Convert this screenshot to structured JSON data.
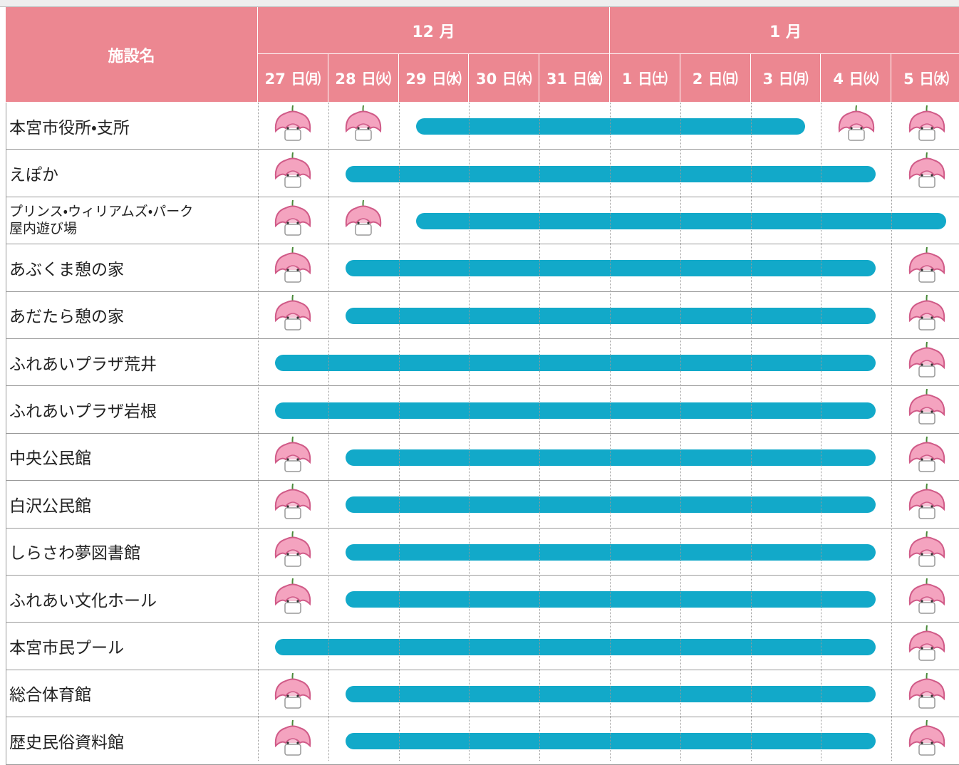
{
  "table": {
    "header": "施設名",
    "months": [
      "12 月",
      "1 月"
    ],
    "days": [
      "27 日㈪",
      "28 日㈫",
      "29 日㈬",
      "30 日㈭",
      "31 日㈮",
      "1 日㈯",
      "2 日㈰",
      "3 日㈪",
      "4 日㈫",
      "5 日㈬"
    ],
    "rows": [
      "本宮市役所・支所",
      "えぽか",
      "プリンス・ウィリアムズ・パーク\n屋内遊び場",
      "あぶくま憩の家",
      "あだたら憩の家",
      "ふれあいプラザ荒井",
      "ふれあいプラザ岩根",
      "中央公民館",
      "白沢公民館",
      "しらさわ夢図書館",
      "ふれあい文化ホール",
      "本宮市民プール",
      "総合体育館",
      "歴史民俗資料館"
    ]
  }
}
